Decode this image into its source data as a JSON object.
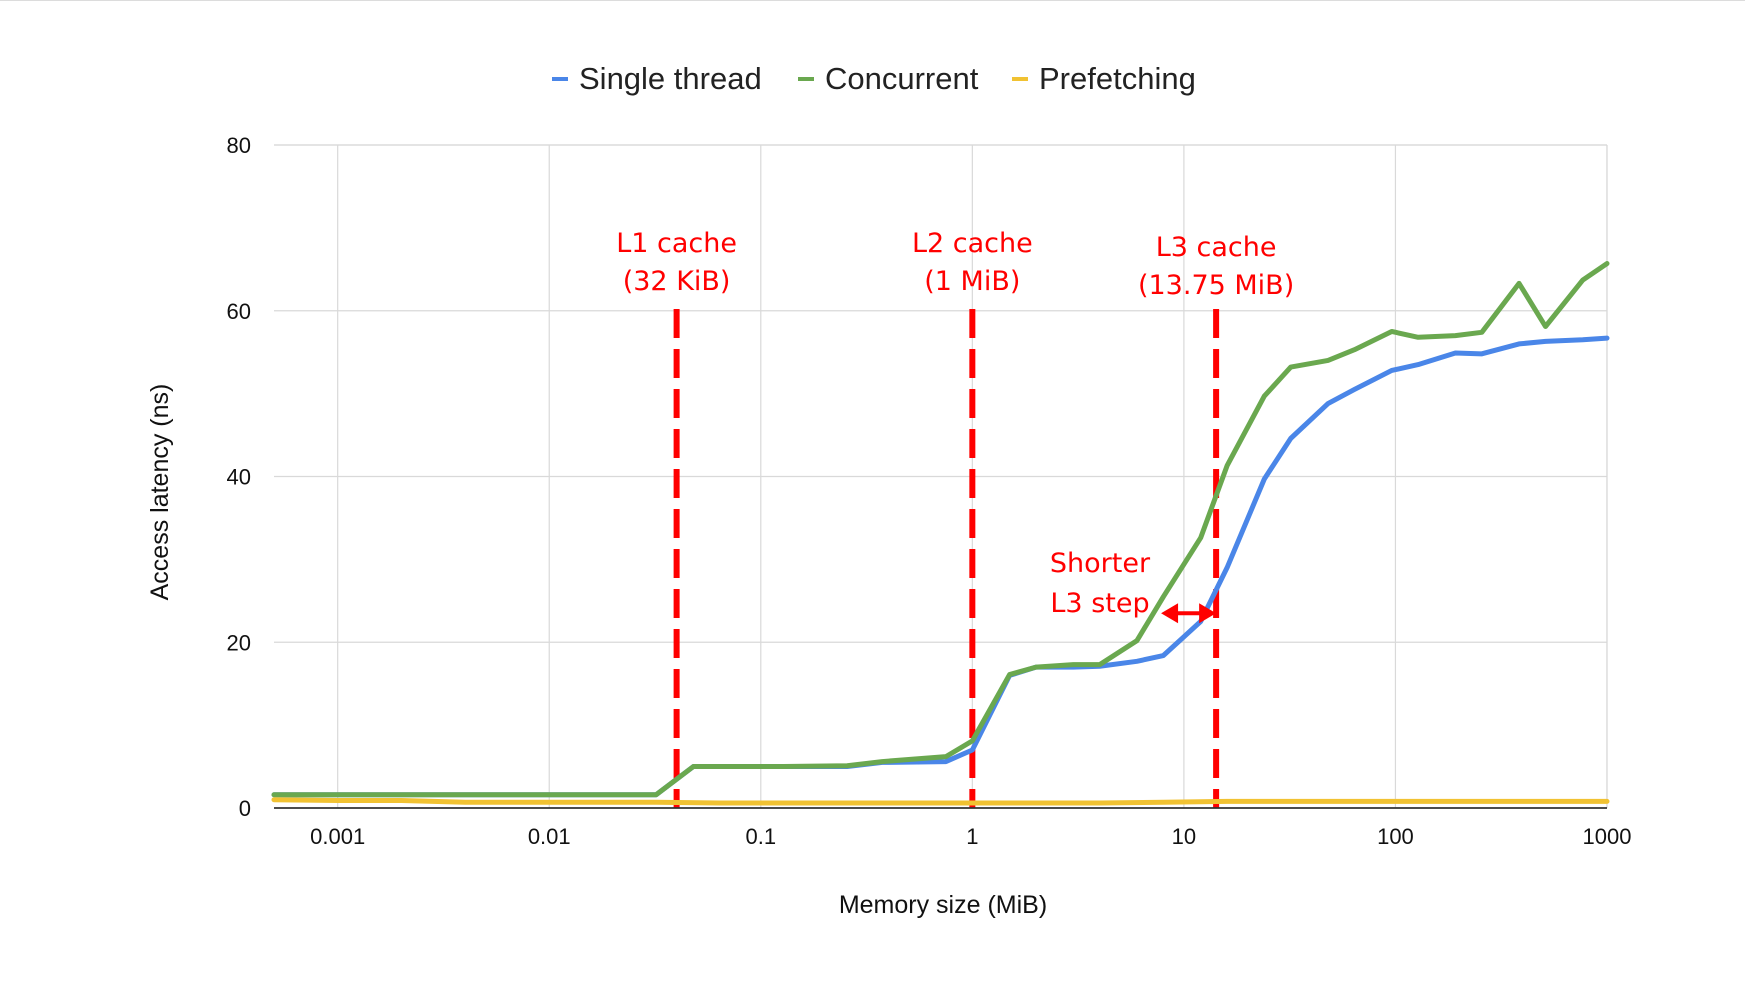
{
  "chart_data": {
    "type": "line",
    "xscale": "log",
    "xlim": [
      0.0005,
      1000
    ],
    "ylim": [
      0,
      80
    ],
    "xlabel": "Memory size (MiB)",
    "ylabel": "Access latency (ns)",
    "legend_position": "top-center",
    "grid": true,
    "x_ticks": [
      {
        "value": 0.001,
        "label": "0.001"
      },
      {
        "value": 0.01,
        "label": "0.01"
      },
      {
        "value": 0.1,
        "label": "0.1"
      },
      {
        "value": 1,
        "label": "1"
      },
      {
        "value": 10,
        "label": "10"
      },
      {
        "value": 100,
        "label": "100"
      },
      {
        "value": 1000,
        "label": "1000"
      }
    ],
    "y_ticks": [
      {
        "value": 0,
        "label": "0"
      },
      {
        "value": 20,
        "label": "20"
      },
      {
        "value": 40,
        "label": "40"
      },
      {
        "value": 60,
        "label": "60"
      },
      {
        "value": 80,
        "label": "80"
      }
    ],
    "series": [
      {
        "name": "Single thread",
        "color": "#4a86e8",
        "points": [
          [
            0.0005,
            1.6
          ],
          [
            0.001,
            1.6
          ],
          [
            0.002,
            1.6
          ],
          [
            0.004,
            1.6
          ],
          [
            0.008,
            1.6
          ],
          [
            0.016,
            1.6
          ],
          [
            0.032,
            1.6
          ],
          [
            0.048,
            5.0
          ],
          [
            0.064,
            5.0
          ],
          [
            0.1,
            5.0
          ],
          [
            0.128,
            5.0
          ],
          [
            0.256,
            5.0
          ],
          [
            0.375,
            5.5
          ],
          [
            0.75,
            5.6
          ],
          [
            1.0,
            7.0
          ],
          [
            1.5,
            16.0
          ],
          [
            2.0,
            17.0
          ],
          [
            3.0,
            17.0
          ],
          [
            4.0,
            17.1
          ],
          [
            6.0,
            17.7
          ],
          [
            8.0,
            18.4
          ],
          [
            12.0,
            22.5
          ],
          [
            16.0,
            29.0
          ],
          [
            24.0,
            39.7
          ],
          [
            32.0,
            44.6
          ],
          [
            48.0,
            48.8
          ],
          [
            64.0,
            50.5
          ],
          [
            96.0,
            52.8
          ],
          [
            128.0,
            53.5
          ],
          [
            192.0,
            54.9
          ],
          [
            256.0,
            54.8
          ],
          [
            384.0,
            56.0
          ],
          [
            512.0,
            56.3
          ],
          [
            768.0,
            56.5
          ],
          [
            1000.0,
            56.7
          ]
        ]
      },
      {
        "name": "Concurrent",
        "color": "#6aa84f",
        "points": [
          [
            0.0005,
            1.6
          ],
          [
            0.001,
            1.6
          ],
          [
            0.002,
            1.6
          ],
          [
            0.004,
            1.6
          ],
          [
            0.008,
            1.6
          ],
          [
            0.016,
            1.6
          ],
          [
            0.032,
            1.6
          ],
          [
            0.048,
            5.0
          ],
          [
            0.064,
            5.0
          ],
          [
            0.1,
            5.0
          ],
          [
            0.128,
            5.0
          ],
          [
            0.256,
            5.1
          ],
          [
            0.375,
            5.6
          ],
          [
            0.75,
            6.2
          ],
          [
            1.0,
            8.1
          ],
          [
            1.5,
            16.1
          ],
          [
            2.0,
            17.0
          ],
          [
            3.0,
            17.3
          ],
          [
            4.0,
            17.3
          ],
          [
            6.0,
            20.2
          ],
          [
            8.0,
            25.5
          ],
          [
            12.0,
            32.6
          ],
          [
            16.0,
            41.3
          ],
          [
            24.0,
            49.7
          ],
          [
            32.0,
            53.2
          ],
          [
            48.0,
            54.0
          ],
          [
            64.0,
            55.3
          ],
          [
            96.0,
            57.5
          ],
          [
            128.0,
            56.8
          ],
          [
            192.0,
            57.0
          ],
          [
            256.0,
            57.4
          ],
          [
            384.0,
            63.3
          ],
          [
            512.0,
            58.1
          ],
          [
            768.0,
            63.7
          ],
          [
            1000.0,
            65.7
          ]
        ]
      },
      {
        "name": "Prefetching",
        "color": "#f1c232",
        "points": [
          [
            0.0005,
            1.0
          ],
          [
            0.001,
            0.9
          ],
          [
            0.002,
            0.9
          ],
          [
            0.004,
            0.7
          ],
          [
            0.008,
            0.7
          ],
          [
            0.016,
            0.7
          ],
          [
            0.032,
            0.7
          ],
          [
            0.064,
            0.6
          ],
          [
            0.128,
            0.6
          ],
          [
            0.256,
            0.6
          ],
          [
            0.5,
            0.6
          ],
          [
            1.0,
            0.6
          ],
          [
            2.0,
            0.6
          ],
          [
            4.0,
            0.6
          ],
          [
            8.0,
            0.7
          ],
          [
            16.0,
            0.8
          ],
          [
            32.0,
            0.8
          ],
          [
            64.0,
            0.8
          ],
          [
            128.0,
            0.8
          ],
          [
            256.0,
            0.8
          ],
          [
            512.0,
            0.8
          ],
          [
            1000.0,
            0.8
          ]
        ]
      }
    ],
    "annotations": [
      {
        "name": "l1",
        "lines": [
          "L1 cache",
          "(32 KiB)"
        ],
        "x": 0.04
      },
      {
        "name": "l2",
        "lines": [
          "L2 cache",
          "(1 MiB)"
        ],
        "x": 1.0
      },
      {
        "name": "l3",
        "lines": [
          "L3 cache",
          "(13.75 MiB)"
        ],
        "x": 14.2
      }
    ],
    "arrow_annotation": {
      "lines": [
        "Shorter",
        "L3 step"
      ],
      "from_x": 7.8,
      "to_x": 14.2,
      "y": 23.5
    }
  },
  "colors": {
    "marker_line": "#ff0000",
    "annotation_text": "#ff0000",
    "grid": "#d9d9d9",
    "axis": "#333333"
  }
}
